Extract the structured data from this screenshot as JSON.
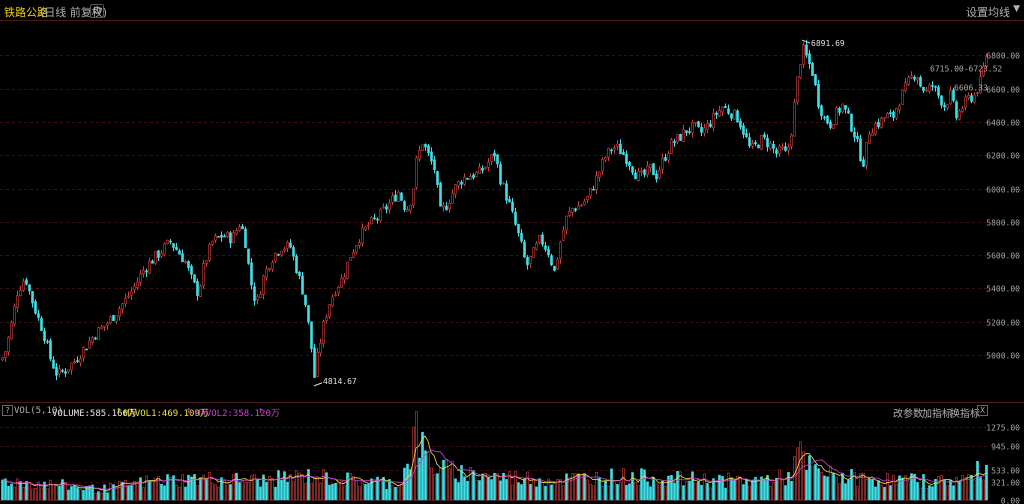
{
  "header": {
    "title": "铁路公路",
    "subtitle": "(日线 前复权)",
    "ma_button": "设置均线",
    "ma_arrow": "▼"
  },
  "volume_header": {
    "help": "?",
    "name": "VOL(5,10)",
    "volume": "VOLUME:585.166万",
    "mavol1": "MAVOL1:469.109万",
    "mavol2": "MAVOL2:358.120万",
    "arrow": "↑",
    "tools": [
      "改参数",
      "加指标",
      "换指标"
    ],
    "close": "X"
  },
  "colors": {
    "up": "#d04040",
    "down": "#40e0e8",
    "mavol1": "#f0e040",
    "mavol2": "#d040d0",
    "grid": "#3a1010"
  },
  "chart_data": [
    {
      "type": "candlestick",
      "title": "",
      "y_ticks": [
        "6800.00",
        "6600.00",
        "6400.00",
        "6200.00",
        "6000.00",
        "5800.00",
        "5600.00",
        "5400.00",
        "5200.00",
        "5000.00"
      ],
      "ylim": [
        4760,
        7000
      ],
      "grid": true,
      "annotations": [
        {
          "label": "6891.69",
          "value": 6891.69,
          "kind": "high"
        },
        {
          "label": "4814.67",
          "value": 4814.67,
          "kind": "low"
        },
        {
          "label": "6715.00-6723.52",
          "value": 6720,
          "kind": "overlay"
        },
        {
          "label": "6606.33",
          "value": 6606.33,
          "kind": "overlay"
        }
      ],
      "anchors": [
        [
          0,
          4970
        ],
        [
          4,
          5000
        ],
        [
          10,
          5150
        ],
        [
          17,
          5380
        ],
        [
          25,
          5470
        ],
        [
          30,
          5360
        ],
        [
          36,
          5250
        ],
        [
          43,
          5140
        ],
        [
          50,
          4980
        ],
        [
          57,
          4880
        ],
        [
          65,
          4910
        ],
        [
          75,
          4970
        ],
        [
          85,
          5050
        ],
        [
          95,
          5130
        ],
        [
          105,
          5180
        ],
        [
          115,
          5250
        ],
        [
          125,
          5330
        ],
        [
          135,
          5420
        ],
        [
          142,
          5500
        ],
        [
          150,
          5560
        ],
        [
          160,
          5620
        ],
        [
          170,
          5680
        ],
        [
          178,
          5620
        ],
        [
          185,
          5560
        ],
        [
          192,
          5440
        ],
        [
          198,
          5370
        ],
        [
          204,
          5550
        ],
        [
          212,
          5680
        ],
        [
          222,
          5720
        ],
        [
          232,
          5700
        ],
        [
          240,
          5800
        ],
        [
          245,
          5680
        ],
        [
          250,
          5450
        ],
        [
          256,
          5300
        ],
        [
          262,
          5450
        ],
        [
          270,
          5570
        ],
        [
          280,
          5650
        ],
        [
          290,
          5650
        ],
        [
          297,
          5500
        ],
        [
          304,
          5350
        ],
        [
          310,
          5100
        ],
        [
          314,
          4870
        ],
        [
          318,
          5020
        ],
        [
          322,
          5150
        ],
        [
          328,
          5300
        ],
        [
          335,
          5400
        ],
        [
          342,
          5460
        ],
        [
          350,
          5600
        ],
        [
          358,
          5700
        ],
        [
          368,
          5780
        ],
        [
          378,
          5830
        ],
        [
          388,
          5900
        ],
        [
          398,
          5980
        ],
        [
          406,
          5870
        ],
        [
          412,
          5960
        ],
        [
          416,
          6160
        ],
        [
          422,
          6280
        ],
        [
          428,
          6200
        ],
        [
          434,
          6120
        ],
        [
          440,
          5860
        ],
        [
          446,
          5900
        ],
        [
          454,
          6000
        ],
        [
          462,
          6060
        ],
        [
          470,
          6080
        ],
        [
          478,
          6090
        ],
        [
          486,
          6140
        ],
        [
          494,
          6210
        ],
        [
          500,
          6060
        ],
        [
          508,
          5920
        ],
        [
          514,
          5800
        ],
        [
          520,
          5680
        ],
        [
          526,
          5530
        ],
        [
          532,
          5600
        ],
        [
          540,
          5700
        ],
        [
          548,
          5620
        ],
        [
          554,
          5500
        ],
        [
          560,
          5680
        ],
        [
          566,
          5820
        ],
        [
          572,
          5880
        ],
        [
          580,
          5900
        ],
        [
          588,
          5950
        ],
        [
          596,
          6060
        ],
        [
          604,
          6180
        ],
        [
          612,
          6250
        ],
        [
          618,
          6240
        ],
        [
          624,
          6200
        ],
        [
          630,
          6150
        ],
        [
          636,
          6080
        ],
        [
          642,
          6070
        ],
        [
          650,
          6120
        ],
        [
          656,
          6080
        ],
        [
          662,
          6160
        ],
        [
          670,
          6260
        ],
        [
          678,
          6300
        ],
        [
          686,
          6350
        ],
        [
          694,
          6370
        ],
        [
          700,
          6330
        ],
        [
          708,
          6380
        ],
        [
          716,
          6450
        ],
        [
          722,
          6490
        ],
        [
          730,
          6460
        ],
        [
          738,
          6420
        ],
        [
          744,
          6330
        ],
        [
          750,
          6230
        ],
        [
          756,
          6260
        ],
        [
          762,
          6300
        ],
        [
          770,
          6260
        ],
        [
          776,
          6210
        ],
        [
          782,
          6230
        ],
        [
          786,
          6200
        ],
        [
          790,
          6300
        ],
        [
          794,
          6500
        ],
        [
          798,
          6700
        ],
        [
          802,
          6840
        ],
        [
          806,
          6790
        ],
        [
          812,
          6700
        ],
        [
          818,
          6520
        ],
        [
          824,
          6420
        ],
        [
          830,
          6390
        ],
        [
          836,
          6450
        ],
        [
          842,
          6500
        ],
        [
          848,
          6420
        ],
        [
          854,
          6330
        ],
        [
          860,
          6200
        ],
        [
          864,
          6150
        ],
        [
          868,
          6340
        ],
        [
          874,
          6380
        ],
        [
          880,
          6400
        ],
        [
          886,
          6440
        ],
        [
          892,
          6420
        ],
        [
          898,
          6520
        ],
        [
          904,
          6590
        ],
        [
          910,
          6660
        ],
        [
          916,
          6700
        ],
        [
          920,
          6620
        ],
        [
          926,
          6580
        ],
        [
          932,
          6620
        ],
        [
          938,
          6560
        ],
        [
          944,
          6500
        ],
        [
          950,
          6560
        ],
        [
          956,
          6430
        ],
        [
          962,
          6490
        ],
        [
          968,
          6540
        ],
        [
          974,
          6560
        ],
        [
          980,
          6640
        ],
        [
          986,
          6800
        ]
      ]
    },
    {
      "type": "bar",
      "title": "VOL(5,10)",
      "y_ticks": [
        "1275.00",
        "945.00",
        "533.00",
        "321.00",
        "0.00"
      ],
      "ylim": [
        0,
        1400
      ],
      "series": [
        {
          "name": "VOLUME",
          "value_label": "585.166万"
        },
        {
          "name": "MAVOL1",
          "value_label": "469.109万"
        },
        {
          "name": "MAVOL2",
          "value_label": "358.120万"
        }
      ],
      "anchors": [
        [
          0,
          340
        ],
        [
          60,
          260
        ],
        [
          100,
          180
        ],
        [
          150,
          330
        ],
        [
          200,
          370
        ],
        [
          260,
          340
        ],
        [
          310,
          420
        ],
        [
          360,
          330
        ],
        [
          400,
          300
        ],
        [
          412,
          900
        ],
        [
          415,
          1300
        ],
        [
          420,
          950
        ],
        [
          430,
          620
        ],
        [
          450,
          500
        ],
        [
          500,
          400
        ],
        [
          560,
          360
        ],
        [
          620,
          410
        ],
        [
          680,
          360
        ],
        [
          750,
          330
        ],
        [
          790,
          400
        ],
        [
          795,
          720
        ],
        [
          800,
          780
        ],
        [
          806,
          600
        ],
        [
          820,
          460
        ],
        [
          860,
          370
        ],
        [
          900,
          340
        ],
        [
          940,
          330
        ],
        [
          970,
          380
        ],
        [
          986,
          620
        ]
      ]
    }
  ]
}
